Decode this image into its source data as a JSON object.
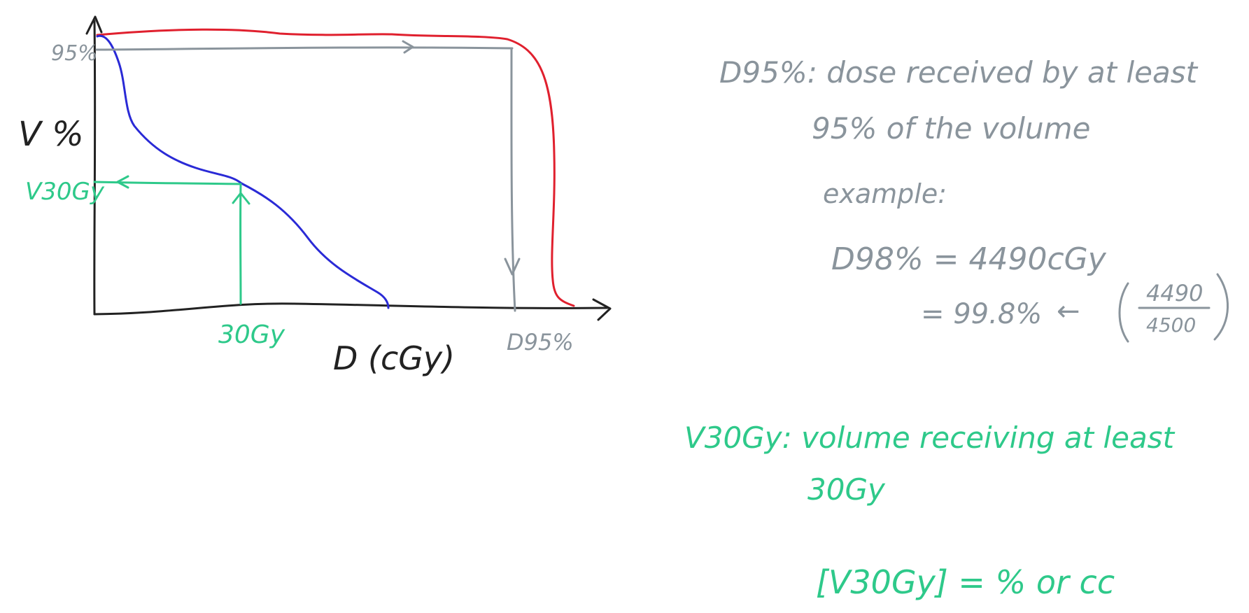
{
  "colors": {
    "axis": "#222222",
    "high_dose_curve": "#e0202e",
    "low_dose_curve": "#2a2ad6",
    "d95_guide": "#8a949c",
    "v30_guide": "#2ec98a",
    "notes_gray": "#8a949c",
    "notes_green": "#2ec98a"
  },
  "graph": {
    "y_axis_label": "V %",
    "x_axis_label": "D (cGy)",
    "y_mark_95": "95%",
    "y_mark_v30": "V30Gy",
    "x_mark_30gy": "30Gy",
    "x_mark_d95": "D95%"
  },
  "notes": {
    "d95_line1": "D95%: dose received by at least",
    "d95_line2": "95% of the volume",
    "example_label": "example:",
    "example_line1": "D98% = 4490cGy",
    "example_line2": "= 99.8%",
    "arrow_symbol": "←",
    "frac_num": "4490",
    "frac_den": "4500",
    "v30_line1": "V30Gy: volume receiving at least",
    "v30_line2": "30Gy",
    "v30_units": "[V30Gy] = % or cc"
  }
}
